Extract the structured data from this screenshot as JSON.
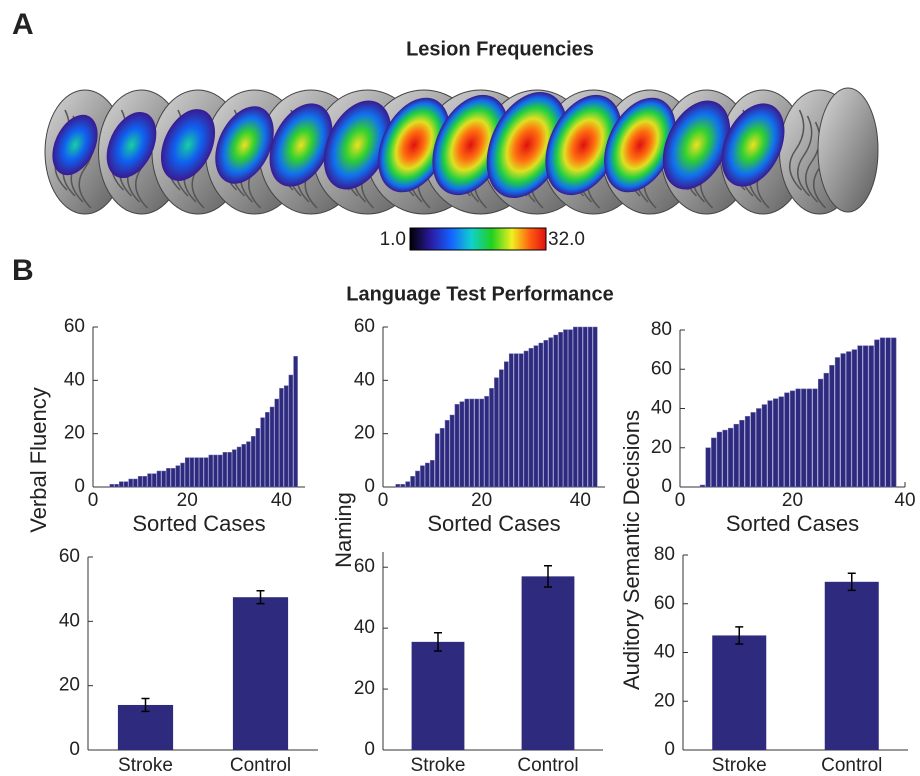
{
  "figure": {
    "panel_a_label": "A",
    "panel_a_title": "Lesion Frequencies",
    "colorbar": {
      "min_label": "1.0",
      "max_label": "32.0"
    },
    "panel_b_label": "B",
    "panel_b_title": "Language Test Performance"
  },
  "chart_data": [
    {
      "type": "bar",
      "xlabel": "Sorted Cases",
      "ylabel": "Verbal Fluency",
      "color": "#2e2a7e",
      "x": [
        1,
        2,
        3,
        4,
        5,
        6,
        7,
        8,
        9,
        10,
        11,
        12,
        13,
        14,
        15,
        16,
        17,
        18,
        19,
        20,
        21,
        22,
        23,
        24,
        25,
        26,
        27,
        28,
        29,
        30,
        31,
        32,
        33,
        34,
        35,
        36,
        37,
        38,
        39,
        40,
        41,
        42,
        43
      ],
      "values": [
        0,
        0,
        0,
        1,
        1,
        2,
        2,
        3,
        3,
        4,
        4,
        5,
        5,
        6,
        6,
        7,
        7,
        8,
        9,
        11,
        11,
        11,
        11,
        11,
        12,
        12,
        12,
        13,
        13,
        14,
        15,
        16,
        17,
        19,
        22,
        26,
        28,
        30,
        33,
        37,
        38,
        42,
        49
      ],
      "xlim": [
        0,
        45
      ],
      "xticks": [
        0,
        20,
        40
      ],
      "ylim": [
        0,
        60
      ],
      "yticks": [
        0,
        20,
        40,
        60
      ]
    },
    {
      "type": "bar",
      "xlabel": "Sorted Cases",
      "ylabel": "Naming",
      "color": "#2e2a7e",
      "x": [
        1,
        2,
        3,
        4,
        5,
        6,
        7,
        8,
        9,
        10,
        11,
        12,
        13,
        14,
        15,
        16,
        17,
        18,
        19,
        20,
        21,
        22,
        23,
        24,
        25,
        26,
        27,
        28,
        29,
        30,
        31,
        32,
        33,
        34,
        35,
        36,
        37,
        38,
        39,
        40,
        41,
        42,
        43
      ],
      "values": [
        0,
        0,
        1,
        1,
        2,
        4,
        6,
        8,
        9,
        10,
        20,
        22,
        25,
        27,
        31,
        32,
        33,
        33,
        33,
        33,
        34,
        37,
        41,
        44,
        47,
        50,
        50,
        50,
        51,
        52,
        53,
        54,
        55,
        56,
        57,
        58,
        59,
        59,
        60,
        60,
        60,
        60,
        60
      ],
      "xlim": [
        0,
        45
      ],
      "xticks": [
        0,
        20,
        40
      ],
      "ylim": [
        0,
        60
      ],
      "yticks": [
        0,
        20,
        40,
        60
      ]
    },
    {
      "type": "bar",
      "xlabel": "Sorted Cases",
      "ylabel": "Auditory Semantic Decisions",
      "color": "#2e2a7e",
      "x": [
        1,
        2,
        3,
        4,
        5,
        6,
        7,
        8,
        9,
        10,
        11,
        12,
        13,
        14,
        15,
        16,
        17,
        18,
        19,
        20,
        21,
        22,
        23,
        24,
        25,
        26,
        27,
        28,
        29,
        30,
        31,
        32,
        33,
        34,
        35,
        36,
        37,
        38
      ],
      "values": [
        0,
        0,
        0,
        1,
        20,
        25,
        28,
        29,
        30,
        32,
        34,
        36,
        38,
        40,
        42,
        44,
        45,
        46,
        48,
        49,
        50,
        50,
        50,
        50,
        55,
        58,
        62,
        66,
        68,
        69,
        70,
        72,
        72,
        72,
        75,
        76,
        76,
        76
      ],
      "xlim": [
        0,
        40
      ],
      "xticks": [
        0,
        20,
        40
      ],
      "ylim": [
        0,
        80
      ],
      "yticks": [
        0,
        20,
        40,
        60,
        80
      ]
    },
    {
      "type": "bar",
      "color": "#2e2a7e",
      "categories": [
        "Stroke",
        "Control"
      ],
      "values": [
        14,
        47.5
      ],
      "errors": [
        2,
        2
      ],
      "ylim": [
        0,
        60
      ],
      "yticks": [
        0,
        20,
        40,
        60
      ]
    },
    {
      "type": "bar",
      "color": "#2e2a7e",
      "categories": [
        "Stroke",
        "Control"
      ],
      "values": [
        35.5,
        57
      ],
      "errors": [
        3,
        3.5
      ],
      "ylim": [
        0,
        65
      ],
      "yticks": [
        0,
        20,
        40,
        60
      ]
    },
    {
      "type": "bar",
      "color": "#2e2a7e",
      "categories": [
        "Stroke",
        "Control"
      ],
      "values": [
        47,
        69
      ],
      "errors": [
        3.5,
        3.5
      ],
      "ylim": [
        0,
        80
      ],
      "yticks": [
        0,
        20,
        40,
        60,
        80
      ]
    }
  ]
}
